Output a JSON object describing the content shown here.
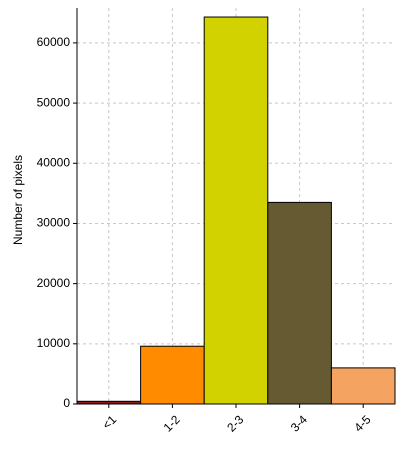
{
  "chart_data": {
    "type": "bar",
    "y_label": "Number of pixels",
    "categories": [
      "<1",
      "1-2",
      "2-3",
      "3-4",
      "4-5"
    ],
    "values": [
      450,
      9600,
      64300,
      33500,
      6000
    ],
    "colors": [
      "#8b1a1a",
      "#ff8c00",
      "#d2d200",
      "#665a32",
      "#f4a460"
    ],
    "ylim": [
      0,
      65800
    ],
    "yticks": [
      0,
      10000,
      20000,
      30000,
      40000,
      50000,
      60000
    ],
    "grid": true
  }
}
